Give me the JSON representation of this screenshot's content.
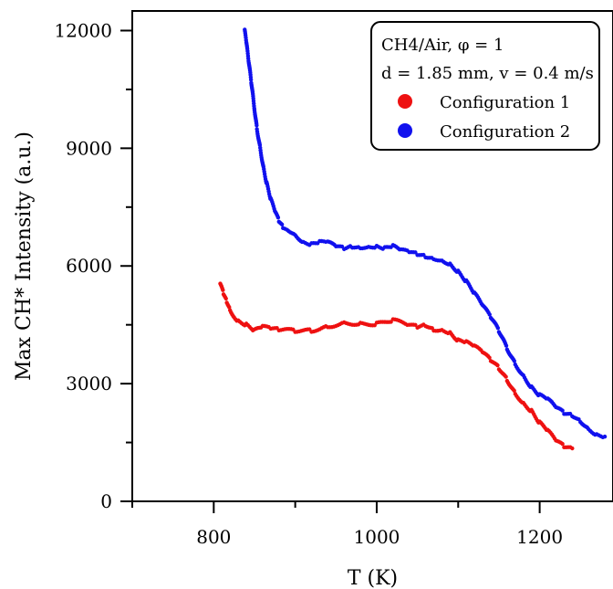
{
  "chart_data": {
    "type": "scatter",
    "xlabel": "T (K)",
    "ylabel": "Max CH* Intensity (a.u.)",
    "xlim": [
      700,
      1290
    ],
    "ylim": [
      0,
      12500
    ],
    "x_ticks": [
      800,
      1000,
      1200
    ],
    "x_minor_ticks": [
      700,
      900,
      1100
    ],
    "y_ticks": [
      0,
      3000,
      6000,
      9000,
      12000
    ],
    "y_minor_ticks": [
      1500,
      4500,
      7500,
      10500
    ],
    "legend": {
      "placement": "top-right",
      "line1": "CH4/Air, φ = 1",
      "line2": "d = 1.85 mm, v = 0.4 m/s"
    },
    "series": [
      {
        "name": "Configuration 1",
        "color": "#ee1111",
        "points": [
          [
            808,
            5550
          ],
          [
            812,
            5300
          ],
          [
            816,
            5100
          ],
          [
            820,
            4900
          ],
          [
            825,
            4700
          ],
          [
            830,
            4600
          ],
          [
            840,
            4500
          ],
          [
            850,
            4350
          ],
          [
            860,
            4450
          ],
          [
            870,
            4400
          ],
          [
            880,
            4380
          ],
          [
            900,
            4350
          ],
          [
            920,
            4350
          ],
          [
            940,
            4450
          ],
          [
            960,
            4550
          ],
          [
            980,
            4520
          ],
          [
            1000,
            4520
          ],
          [
            1020,
            4620
          ],
          [
            1040,
            4500
          ],
          [
            1050,
            4450
          ],
          [
            1060,
            4500
          ],
          [
            1070,
            4380
          ],
          [
            1080,
            4380
          ],
          [
            1090,
            4300
          ],
          [
            1100,
            4100
          ],
          [
            1110,
            4050
          ],
          [
            1120,
            3950
          ],
          [
            1130,
            3800
          ],
          [
            1140,
            3600
          ],
          [
            1150,
            3400
          ],
          [
            1160,
            3100
          ],
          [
            1170,
            2750
          ],
          [
            1180,
            2500
          ],
          [
            1190,
            2300
          ],
          [
            1200,
            2000
          ],
          [
            1210,
            1800
          ],
          [
            1220,
            1550
          ],
          [
            1230,
            1400
          ],
          [
            1240,
            1350
          ]
        ]
      },
      {
        "name": "Configuration 2",
        "color": "#1111ee",
        "points": [
          [
            838,
            12000
          ],
          [
            840,
            11700
          ],
          [
            843,
            11200
          ],
          [
            846,
            10700
          ],
          [
            850,
            10000
          ],
          [
            853,
            9500
          ],
          [
            857,
            9000
          ],
          [
            861,
            8500
          ],
          [
            865,
            8100
          ],
          [
            870,
            7700
          ],
          [
            875,
            7400
          ],
          [
            880,
            7150
          ],
          [
            885,
            7000
          ],
          [
            890,
            6950
          ],
          [
            900,
            6800
          ],
          [
            910,
            6600
          ],
          [
            920,
            6550
          ],
          [
            930,
            6600
          ],
          [
            940,
            6600
          ],
          [
            950,
            6500
          ],
          [
            960,
            6450
          ],
          [
            970,
            6500
          ],
          [
            980,
            6480
          ],
          [
            990,
            6500
          ],
          [
            1000,
            6500
          ],
          [
            1010,
            6450
          ],
          [
            1020,
            6500
          ],
          [
            1030,
            6400
          ],
          [
            1040,
            6350
          ],
          [
            1050,
            6300
          ],
          [
            1060,
            6250
          ],
          [
            1070,
            6200
          ],
          [
            1080,
            6150
          ],
          [
            1090,
            6050
          ],
          [
            1100,
            5850
          ],
          [
            1110,
            5600
          ],
          [
            1120,
            5300
          ],
          [
            1130,
            5000
          ],
          [
            1140,
            4700
          ],
          [
            1150,
            4350
          ],
          [
            1160,
            3900
          ],
          [
            1170,
            3500
          ],
          [
            1180,
            3200
          ],
          [
            1190,
            2900
          ],
          [
            1200,
            2700
          ],
          [
            1210,
            2600
          ],
          [
            1220,
            2400
          ],
          [
            1230,
            2250
          ],
          [
            1240,
            2200
          ],
          [
            1250,
            2050
          ],
          [
            1260,
            1850
          ],
          [
            1270,
            1700
          ],
          [
            1280,
            1650
          ]
        ]
      }
    ]
  }
}
